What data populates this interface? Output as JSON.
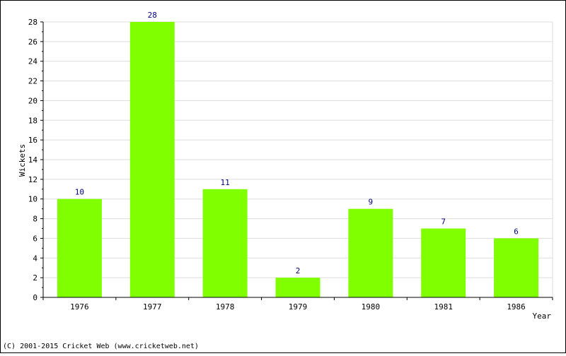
{
  "chart_data": {
    "type": "bar",
    "categories": [
      "1976",
      "1977",
      "1978",
      "1979",
      "1980",
      "1981",
      "1986"
    ],
    "values": [
      10,
      28,
      11,
      2,
      9,
      7,
      6
    ],
    "data_labels": [
      "10",
      "28",
      "11",
      "2",
      "9",
      "7",
      "6"
    ],
    "title": "",
    "xlabel": "Year",
    "ylabel": "Wickets",
    "ylim": [
      0,
      28
    ],
    "yticks": [
      0,
      2,
      4,
      6,
      8,
      10,
      12,
      14,
      16,
      18,
      20,
      22,
      24,
      26,
      28
    ],
    "grid": true,
    "legend": "none",
    "colors": {
      "bar": "#80ff00",
      "data_label": "#000080",
      "grid": "#dddddd",
      "axis": "#000000"
    }
  },
  "footer": {
    "copyright": "(C) 2001-2015 Cricket Web (www.cricketweb.net)"
  }
}
